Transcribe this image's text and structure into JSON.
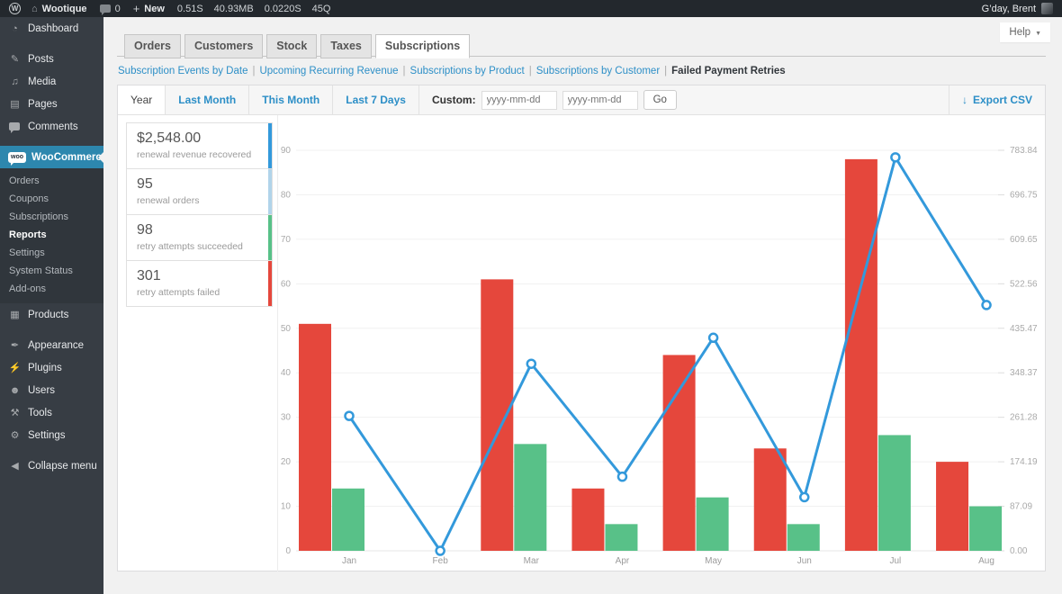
{
  "admin_bar": {
    "wp_logo": "W",
    "site_name": "Wootique",
    "comments_count": "0",
    "new_label": "New",
    "stats": [
      "0.51S",
      "40.93MB",
      "0.0220S",
      "45Q"
    ],
    "greeting": "G’day, Brent"
  },
  "help": {
    "label": "Help",
    "caret": "▼"
  },
  "sidebar": {
    "items": [
      {
        "label": "Dashboard",
        "icon": "dashboard-icon",
        "sep_after": true
      },
      {
        "label": "Posts",
        "icon": "posts-icon"
      },
      {
        "label": "Media",
        "icon": "media-icon"
      },
      {
        "label": "Pages",
        "icon": "pages-icon"
      },
      {
        "label": "Comments",
        "icon": "comments-icon",
        "sep_after": true
      },
      {
        "label": "WooCommerce",
        "icon": "woocommerce-icon",
        "active": true,
        "has_submenu": true
      },
      {
        "label": "Products",
        "icon": "products-icon",
        "sep_after": true
      },
      {
        "label": "Appearance",
        "icon": "appearance-icon"
      },
      {
        "label": "Plugins",
        "icon": "plugins-icon"
      },
      {
        "label": "Users",
        "icon": "users-icon"
      },
      {
        "label": "Tools",
        "icon": "tools-icon"
      },
      {
        "label": "Settings",
        "icon": "settings-icon",
        "sep_after": true
      },
      {
        "label": "Collapse menu",
        "icon": "collapse-icon"
      }
    ],
    "woocommerce_submenu": [
      "Orders",
      "Coupons",
      "Subscriptions",
      "Reports",
      "Settings",
      "System Status",
      "Add-ons"
    ],
    "submenu_current": "Reports"
  },
  "report_tabs": [
    {
      "label": "Orders"
    },
    {
      "label": "Customers"
    },
    {
      "label": "Stock"
    },
    {
      "label": "Taxes"
    },
    {
      "label": "Subscriptions",
      "active": true
    }
  ],
  "subnav": [
    {
      "label": "Subscription Events by Date"
    },
    {
      "label": "Upcoming Recurring Revenue"
    },
    {
      "label": "Subscriptions by Product"
    },
    {
      "label": "Subscriptions by Customer"
    },
    {
      "label": "Failed Payment Retries",
      "current": true
    }
  ],
  "filter_bar": {
    "tabs": [
      {
        "label": "Year",
        "active": true
      },
      {
        "label": "Last Month"
      },
      {
        "label": "This Month"
      },
      {
        "label": "Last 7 Days"
      }
    ],
    "custom_label": "Custom:",
    "date_from_placeholder": "yyyy-mm-dd",
    "date_to_placeholder": "yyyy-mm-dd",
    "go_label": "Go",
    "export_label": "Export CSV",
    "export_icon": "↓"
  },
  "summary_cards": [
    {
      "value": "$2,548.00",
      "label": "renewal revenue recovered",
      "accent": "#3399db"
    },
    {
      "value": "95",
      "label": "renewal orders",
      "accent": "#b1d4ea"
    },
    {
      "value": "98",
      "label": "retry attempts succeeded",
      "accent": "#58c188"
    },
    {
      "value": "301",
      "label": "retry attempts failed",
      "accent": "#e5473c"
    }
  ],
  "chart_data": {
    "type": "bar",
    "categories": [
      "Jan",
      "Feb",
      "Mar",
      "Apr",
      "May",
      "Jun",
      "Jul",
      "Aug"
    ],
    "series": [
      {
        "name": "retry attempts failed",
        "type": "bar",
        "axis": "left",
        "color": "#e5473c",
        "values": [
          51,
          0,
          61,
          14,
          44,
          23,
          88,
          20
        ]
      },
      {
        "name": "retry attempts succeeded",
        "type": "bar",
        "axis": "left",
        "color": "#58c188",
        "values": [
          14,
          0,
          24,
          6,
          12,
          6,
          26,
          10
        ]
      },
      {
        "name": "renewal revenue recovered ($)",
        "type": "line",
        "axis": "right",
        "color": "#3399db",
        "values": [
          264,
          0,
          366,
          145,
          417,
          105,
          770,
          481
        ]
      }
    ],
    "left_axis": {
      "ticks": [
        "90",
        "80",
        "70",
        "60",
        "50",
        "40",
        "30",
        "20",
        "10",
        "0"
      ],
      "min": 0,
      "max": 90
    },
    "right_axis": {
      "ticks": [
        "783.84",
        "696.75",
        "609.65",
        "522.56",
        "435.47",
        "348.37",
        "261.28",
        "174.19",
        "87.09",
        "0.00"
      ],
      "min": 0,
      "max": 783.84
    },
    "grid": true,
    "legend": "none",
    "title": ""
  }
}
